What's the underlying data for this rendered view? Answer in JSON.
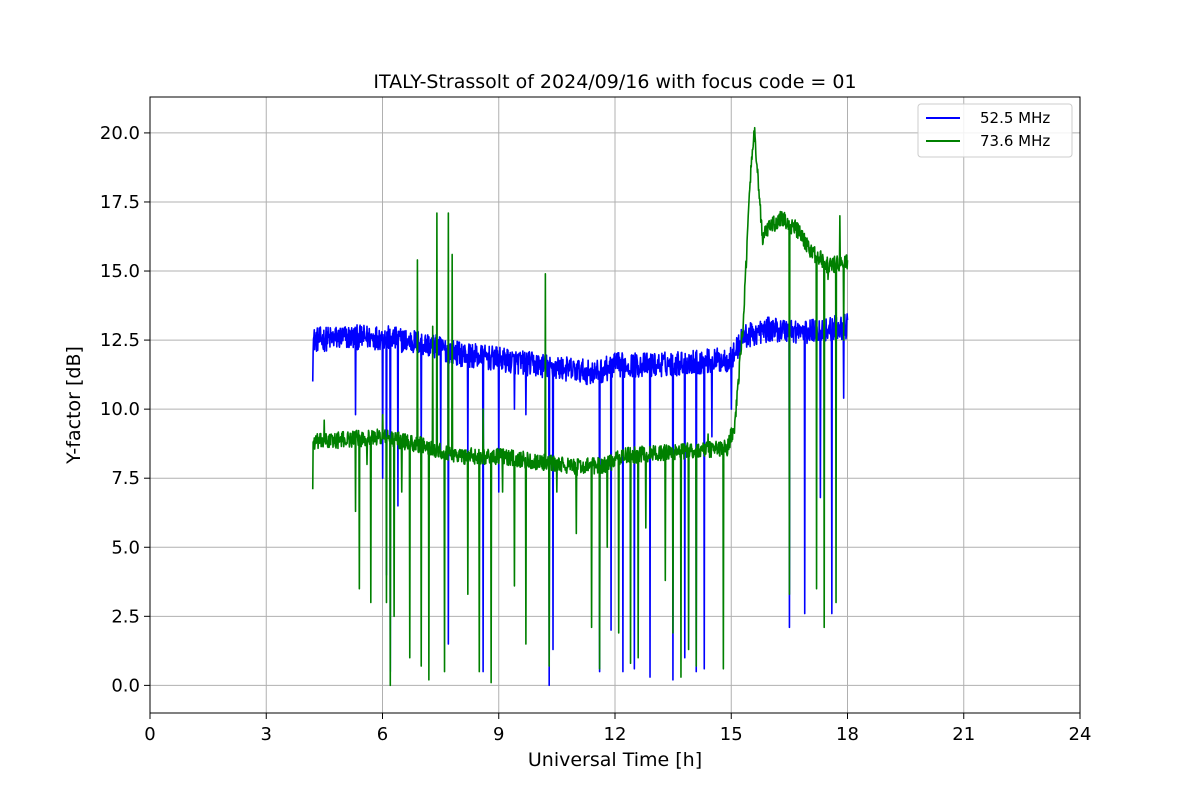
{
  "chart_data": {
    "type": "line",
    "title": "ITALY-Strassolt of 2024/09/16 with focus code = 01",
    "xlabel": "Universal Time [h]",
    "ylabel": "Y-factor [dB]",
    "xlim": [
      0,
      24
    ],
    "ylim": [
      -1.0,
      21.3
    ],
    "xticks": [
      0,
      3,
      6,
      9,
      12,
      15,
      18,
      21,
      24
    ],
    "yticks": [
      0.0,
      2.5,
      5.0,
      7.5,
      10.0,
      12.5,
      15.0,
      17.5,
      20.0
    ],
    "xtick_labels": [
      "0",
      "3",
      "6",
      "9",
      "12",
      "15",
      "18",
      "21",
      "24"
    ],
    "ytick_labels": [
      "0.0",
      "2.5",
      "5.0",
      "7.5",
      "10.0",
      "12.5",
      "15.0",
      "17.5",
      "20.0"
    ],
    "grid": true,
    "legend_position": "top-right",
    "series": [
      {
        "name": "52.5 MHz",
        "color": "#0000ff",
        "baseline": [
          [
            4.2,
            12.5
          ],
          [
            5.0,
            12.6
          ],
          [
            6.0,
            12.6
          ],
          [
            7.0,
            12.4
          ],
          [
            8.0,
            12.0
          ],
          [
            9.0,
            11.8
          ],
          [
            10.0,
            11.6
          ],
          [
            11.0,
            11.4
          ],
          [
            11.5,
            11.3
          ],
          [
            12.0,
            11.6
          ],
          [
            13.0,
            11.6
          ],
          [
            14.0,
            11.7
          ],
          [
            15.0,
            11.8
          ],
          [
            15.3,
            12.6
          ],
          [
            16.0,
            12.9
          ],
          [
            17.0,
            12.8
          ],
          [
            18.0,
            13.0
          ]
        ],
        "noise_amplitude": 0.45,
        "spikes": [
          [
            4.2,
            11.0
          ],
          [
            5.3,
            9.8
          ],
          [
            6.0,
            7.5
          ],
          [
            6.1,
            4.0
          ],
          [
            6.2,
            0.5
          ],
          [
            6.4,
            6.5
          ],
          [
            7.0,
            8.0
          ],
          [
            7.5,
            8.5
          ],
          [
            7.7,
            1.5
          ],
          [
            8.2,
            8.0
          ],
          [
            8.6,
            0.5
          ],
          [
            9.0,
            7.0
          ],
          [
            9.4,
            10.0
          ],
          [
            9.7,
            9.8
          ],
          [
            10.3,
            0.0
          ],
          [
            10.4,
            1.3
          ],
          [
            11.6,
            0.5
          ],
          [
            11.9,
            2.0
          ],
          [
            12.2,
            0.5
          ],
          [
            12.5,
            0.6
          ],
          [
            12.9,
            0.3
          ],
          [
            13.5,
            0.2
          ],
          [
            13.8,
            1.0
          ],
          [
            14.1,
            0.5
          ],
          [
            14.3,
            0.6
          ],
          [
            14.5,
            9.0
          ],
          [
            15.0,
            10.0
          ],
          [
            16.5,
            2.1
          ],
          [
            16.9,
            2.6
          ],
          [
            17.3,
            6.8
          ],
          [
            17.6,
            2.6
          ],
          [
            17.9,
            10.4
          ]
        ]
      },
      {
        "name": "73.6 MHz",
        "color": "#008000",
        "baseline": [
          [
            4.2,
            8.8
          ],
          [
            5.0,
            8.9
          ],
          [
            6.0,
            9.0
          ],
          [
            7.0,
            8.7
          ],
          [
            8.0,
            8.3
          ],
          [
            9.0,
            8.3
          ],
          [
            10.0,
            8.1
          ],
          [
            11.0,
            7.9
          ],
          [
            11.8,
            8.0
          ],
          [
            12.2,
            8.3
          ],
          [
            13.0,
            8.4
          ],
          [
            14.0,
            8.5
          ],
          [
            14.9,
            8.6
          ],
          [
            15.1,
            9.5
          ],
          [
            15.3,
            13.0
          ],
          [
            15.5,
            18.5
          ],
          [
            15.6,
            20.0
          ],
          [
            15.8,
            16.2
          ],
          [
            16.0,
            16.6
          ],
          [
            16.3,
            16.9
          ],
          [
            16.7,
            16.5
          ],
          [
            17.0,
            15.8
          ],
          [
            17.5,
            15.2
          ],
          [
            18.0,
            15.3
          ]
        ],
        "noise_amplitude": 0.3,
        "spikes": [
          [
            4.2,
            7.1
          ],
          [
            4.5,
            9.6
          ],
          [
            5.3,
            6.3
          ],
          [
            5.4,
            3.5
          ],
          [
            5.6,
            8.0
          ],
          [
            5.7,
            3.0
          ],
          [
            6.0,
            9.8
          ],
          [
            6.1,
            3.0
          ],
          [
            6.2,
            0.0
          ],
          [
            6.3,
            2.5
          ],
          [
            6.5,
            7.0
          ],
          [
            6.7,
            1.0
          ],
          [
            6.9,
            15.4
          ],
          [
            7.0,
            0.7
          ],
          [
            7.2,
            0.2
          ],
          [
            7.3,
            13.0
          ],
          [
            7.4,
            17.1
          ],
          [
            7.6,
            0.5
          ],
          [
            7.7,
            17.1
          ],
          [
            7.8,
            15.6
          ],
          [
            8.2,
            3.3
          ],
          [
            8.5,
            0.5
          ],
          [
            8.6,
            10.0
          ],
          [
            8.8,
            0.1
          ],
          [
            9.1,
            7.0
          ],
          [
            9.4,
            3.6
          ],
          [
            9.7,
            1.5
          ],
          [
            10.0,
            8.0
          ],
          [
            10.2,
            14.9
          ],
          [
            10.3,
            0.7
          ],
          [
            10.5,
            7.0
          ],
          [
            11.0,
            5.5
          ],
          [
            11.4,
            2.1
          ],
          [
            11.6,
            0.6
          ],
          [
            11.8,
            5.0
          ],
          [
            12.1,
            1.9
          ],
          [
            12.4,
            0.8
          ],
          [
            12.6,
            1.0
          ],
          [
            12.8,
            5.7
          ],
          [
            13.3,
            3.8
          ],
          [
            13.5,
            1.9
          ],
          [
            13.7,
            0.3
          ],
          [
            13.9,
            1.3
          ],
          [
            14.1,
            0.7
          ],
          [
            14.4,
            9.1
          ],
          [
            14.8,
            0.6
          ],
          [
            16.5,
            3.3
          ],
          [
            17.2,
            3.5
          ],
          [
            17.4,
            2.1
          ],
          [
            17.5,
            14.7
          ],
          [
            17.7,
            3.0
          ],
          [
            17.8,
            17.0
          ],
          [
            17.9,
            12.5
          ]
        ]
      }
    ]
  }
}
